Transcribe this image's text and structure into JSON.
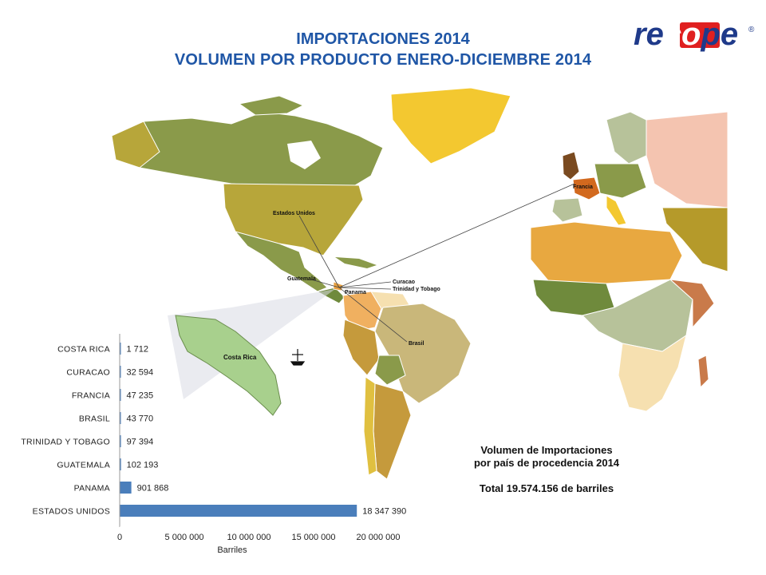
{
  "header": {
    "title_line1": "IMPORTACIONES 2014",
    "title_line2": "VOLUMEN POR PRODUCTO ENERO-DICIEMBRE 2014"
  },
  "logo": {
    "text": "recope",
    "mark": "®",
    "color": "#1f3a8a",
    "accent": "#e02020"
  },
  "map": {
    "labels": [
      "Estados Unidos",
      "Francia",
      "Guatemala",
      "Panama",
      "Curacao",
      "Trinidad y Tobago",
      "Brasil"
    ],
    "inset_label": "Costa Rica",
    "icon": "oil-rig-icon"
  },
  "caption": {
    "line1": "Volumen de Importaciones",
    "line2": "por país de procedencia 2014",
    "total": "Total  19.574.156 de barriles"
  },
  "chart_data": {
    "type": "bar",
    "orientation": "horizontal",
    "categories": [
      "COSTA RICA",
      "CURACAO",
      "FRANCIA",
      "BRASIL",
      "TRINIDAD Y TOBAGO",
      "GUATEMALA",
      "PANAMA",
      "ESTADOS UNIDOS"
    ],
    "values": [
      1712,
      32594,
      47235,
      43770,
      97394,
      102193,
      901868,
      18347390
    ],
    "value_labels": [
      "1 712",
      "32 594",
      "47 235",
      "43 770",
      "97 394",
      "102 193",
      "901 868",
      "18 347 390"
    ],
    "xlabel": "Barriles",
    "xlim": [
      0,
      20000000
    ],
    "xticks": [
      0,
      5000000,
      10000000,
      15000000,
      20000000
    ],
    "xtick_labels": [
      "0",
      "5 000 000",
      "10 000 000",
      "15 000 000",
      "20 000 000"
    ],
    "bar_color": "#4a7ebb",
    "grid": false,
    "legend": false
  }
}
